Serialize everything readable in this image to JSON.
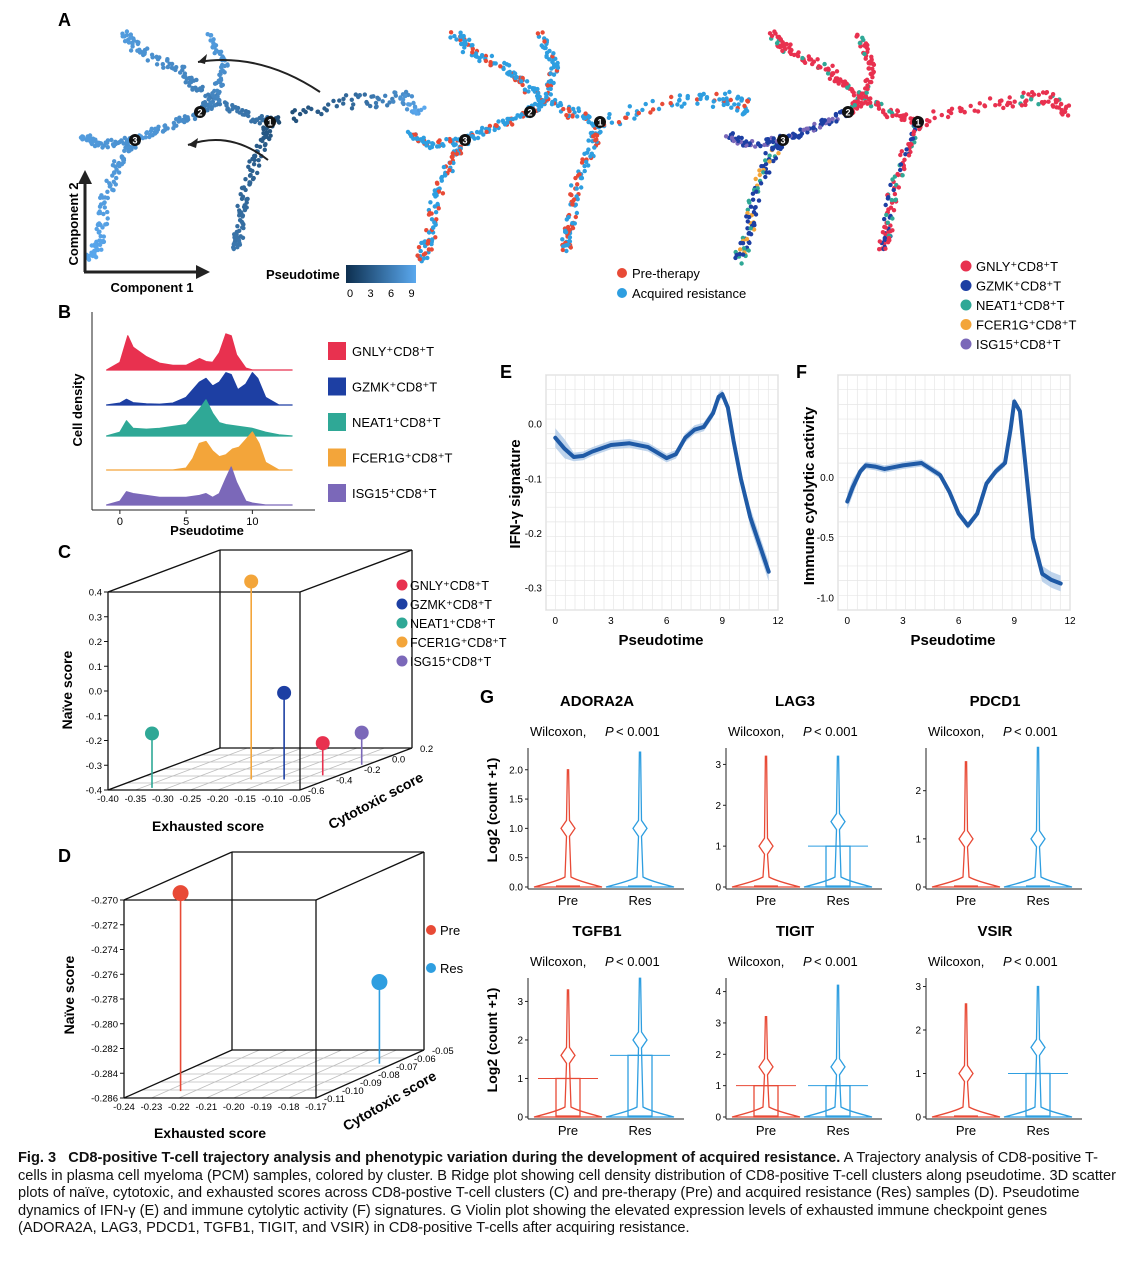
{
  "panels": {
    "A": {
      "label": "A",
      "axis_y": "Component 2",
      "axis_x": "Component 1",
      "pseudotime_legend": {
        "title": "Pseudotime",
        "ticks": [
          "0",
          "3",
          "6",
          "9"
        ]
      },
      "branch_nodes": [
        "1",
        "2",
        "3"
      ],
      "sample_legend": [
        "Pre-therapy",
        "Acquired resistance"
      ],
      "cluster_legend": [
        "GNLY⁺CD8⁺T",
        "GZMK⁺CD8⁺T",
        "NEAT1⁺CD8⁺T",
        "FCER1G⁺CD8⁺T",
        "ISG15⁺CD8⁺T"
      ]
    },
    "B": {
      "label": "B",
      "ylabel": "Cell density",
      "xlabel": "Pseudotime",
      "xticks": [
        "0",
        "5",
        "10"
      ],
      "legend": [
        "GNLY⁺CD8⁺T",
        "GZMK⁺CD8⁺T",
        "NEAT1⁺CD8⁺T",
        "FCER1G⁺CD8⁺T",
        "ISG15⁺CD8⁺T"
      ]
    },
    "C": {
      "label": "C",
      "zlabel": "Naïve score",
      "xlabel": "Exhausted score",
      "ylabel": "Cytotoxic score",
      "zticks": [
        "0.4",
        "0.3",
        "0.2",
        "0.1",
        "0.0",
        "-0.1",
        "-0.2",
        "-0.3",
        "-0.4"
      ],
      "xticks": [
        "-0.40",
        "-0.35",
        "-0.30",
        "-0.25",
        "-0.20",
        "-0.15",
        "-0.10",
        "-0.05"
      ],
      "yticks": [
        "-0.6",
        "-0.4",
        "-0.2",
        "0.0",
        "0.2"
      ],
      "legend": [
        "GNLY⁺CD8⁺T",
        "GZMK⁺CD8⁺T",
        "NEAT1⁺CD8⁺T",
        "FCER1G⁺CD8⁺T",
        "ISG15⁺CD8⁺T"
      ]
    },
    "D": {
      "label": "D",
      "zlabel": "Naïve score",
      "xlabel": "Exhausted score",
      "ylabel": "Cytotoxic score",
      "zticks": [
        "-0.270",
        "-0.272",
        "-0.274",
        "-0.276",
        "-0.278",
        "-0.280",
        "-0.282",
        "-0.284",
        "-0.286"
      ],
      "xticks": [
        "-0.24",
        "-0.23",
        "-0.22",
        "-0.21",
        "-0.20",
        "-0.19",
        "-0.18",
        "-0.17"
      ],
      "yticks": [
        "-0.11",
        "-0.10",
        "-0.09",
        "-0.08",
        "-0.07",
        "-0.06",
        "-0.05"
      ],
      "legend": [
        "Pre",
        "Res"
      ]
    },
    "E": {
      "label": "E",
      "ylabel": "IFN-γ signature",
      "xlabel": "Pseudotime",
      "xticks": [
        "0",
        "3",
        "6",
        "9",
        "12"
      ],
      "yticks": [
        "0.0",
        "-0.1",
        "-0.2",
        "-0.3"
      ]
    },
    "F": {
      "label": "F",
      "ylabel": "Immune cytolytic activity",
      "xlabel": "Pseudotime",
      "xticks": [
        "0",
        "3",
        "6",
        "9",
        "12"
      ],
      "yticks": [
        "0.0",
        "-0.5",
        "-1.0"
      ]
    },
    "G": {
      "label": "G",
      "ylabel": "Log2 (count +1)",
      "groups": [
        "Pre",
        "Res"
      ],
      "test": "Wilcoxon,",
      "p": "P",
      "pval": "< 0.001"
    }
  },
  "chart_data": [
    {
      "panel": "B",
      "type": "area",
      "xlim": [
        -1.5,
        14.5
      ],
      "series": [
        {
          "name": "GNLY⁺CD8⁺T",
          "color": "#e8314f",
          "x": [
            -1,
            0,
            0.6,
            1,
            2,
            3,
            4,
            5,
            6,
            6.5,
            7,
            7.5,
            8,
            8.4,
            8.8,
            9.5,
            10,
            11,
            12,
            13
          ],
          "values": [
            0,
            0.2,
            0.9,
            0.6,
            0.35,
            0.18,
            0.12,
            0.12,
            0.3,
            0.22,
            0.2,
            0.45,
            0.95,
            0.9,
            0.4,
            0.05,
            0,
            0,
            0,
            0
          ]
        },
        {
          "name": "GZMK⁺CD8⁺T",
          "color": "#1d3fa3",
          "x": [
            -1,
            0,
            0.5,
            1,
            2,
            3,
            4,
            5,
            6,
            6.5,
            7,
            7.5,
            8,
            8.4,
            8.9,
            9.5,
            10,
            10.4,
            11,
            12,
            13
          ],
          "values": [
            0,
            0.05,
            0.15,
            0.06,
            0.03,
            0.02,
            0.05,
            0.2,
            0.6,
            0.7,
            0.5,
            0.6,
            0.85,
            0.8,
            0.4,
            0.55,
            0.85,
            0.7,
            0.2,
            0,
            0
          ]
        },
        {
          "name": "NEAT1⁺CD8⁺T",
          "color": "#2fa896",
          "x": [
            -1,
            0,
            0.5,
            1,
            2,
            3,
            4,
            5,
            6,
            6.5,
            7,
            7.5,
            8,
            9,
            10,
            11,
            12,
            13
          ],
          "values": [
            0,
            0.1,
            0.4,
            0.2,
            0.18,
            0.2,
            0.25,
            0.3,
            0.7,
            0.95,
            0.6,
            0.35,
            0.3,
            0.25,
            0.2,
            0.1,
            0.03,
            0
          ]
        },
        {
          "name": "FCER1G⁺CD8⁺T",
          "color": "#f3a53a",
          "x": [
            -1,
            2,
            4,
            5,
            5.5,
            6,
            6.5,
            7,
            7.5,
            8,
            8.5,
            9,
            9.5,
            10,
            10.5,
            11,
            12,
            13
          ],
          "values": [
            0,
            0,
            0,
            0.05,
            0.3,
            0.7,
            0.75,
            0.5,
            0.35,
            0.4,
            0.55,
            0.6,
            0.8,
            1.0,
            0.7,
            0.2,
            0,
            0
          ]
        },
        {
          "name": "ISG15⁺CD8⁺T",
          "color": "#7b68b9",
          "x": [
            -1,
            0,
            0.5,
            1,
            2,
            3,
            4,
            5,
            6,
            6.5,
            7,
            7.5,
            8,
            8.4,
            8.8,
            9.5,
            10,
            11,
            12,
            13
          ],
          "values": [
            0,
            0.1,
            0.35,
            0.3,
            0.25,
            0.2,
            0.2,
            0.2,
            0.25,
            0.3,
            0.2,
            0.3,
            0.7,
            1.0,
            0.6,
            0.1,
            0.05,
            0,
            0,
            0
          ]
        }
      ]
    },
    {
      "panel": "C",
      "type": "scatter",
      "series": [
        {
          "name": "GNLY⁺CD8⁺T",
          "color": "#e8314f",
          "exhausted": -0.08,
          "cytotoxic": -0.45,
          "naive": -0.27
        },
        {
          "name": "GZMK⁺CD8⁺T",
          "color": "#1d3fa3",
          "exhausted": -0.13,
          "cytotoxic": -0.55,
          "naive": -0.05
        },
        {
          "name": "NEAT1⁺CD8⁺T",
          "color": "#2fa896",
          "exhausted": -0.33,
          "cytotoxic": -0.75,
          "naive": -0.18
        },
        {
          "name": "FCER1G⁺CD8⁺T",
          "color": "#f3a53a",
          "exhausted": -0.19,
          "cytotoxic": -0.55,
          "naive": 0.4
        },
        {
          "name": "ISG15⁺CD8⁺T",
          "color": "#7b68b9",
          "exhausted": -0.06,
          "cytotoxic": -0.2,
          "naive": -0.27
        }
      ]
    },
    {
      "panel": "D",
      "type": "scatter",
      "series": [
        {
          "name": "Pre",
          "color": "#e84a36",
          "exhausted": -0.225,
          "cytotoxic": -0.11,
          "naive": -0.27
        },
        {
          "name": "Res",
          "color": "#2e9ee0",
          "exhausted": -0.175,
          "cytotoxic": -0.07,
          "naive": -0.2794
        }
      ]
    },
    {
      "panel": "E",
      "type": "line",
      "xlim": [
        -0.5,
        12
      ],
      "ylim": [
        -0.34,
        0.09
      ],
      "x": [
        0,
        0.5,
        1,
        1.5,
        2,
        3,
        4,
        5,
        5.5,
        6,
        6.5,
        7,
        7.5,
        8,
        8.5,
        8.8,
        9,
        9.3,
        9.6,
        10,
        10.5,
        11,
        11.5
      ],
      "values": [
        -0.025,
        -0.045,
        -0.06,
        -0.058,
        -0.05,
        -0.038,
        -0.035,
        -0.042,
        -0.052,
        -0.062,
        -0.055,
        -0.025,
        -0.01,
        -0.005,
        0.02,
        0.05,
        0.055,
        0.03,
        -0.03,
        -0.1,
        -0.17,
        -0.22,
        -0.27
      ]
    },
    {
      "panel": "F",
      "type": "line",
      "xlim": [
        -0.5,
        12
      ],
      "ylim": [
        -1.1,
        0.85
      ],
      "x": [
        0,
        0.3,
        0.7,
        1,
        1.5,
        2,
        3,
        4,
        5,
        5.5,
        6,
        6.5,
        7,
        7.5,
        8,
        8.5,
        8.8,
        9,
        9.3,
        9.6,
        10,
        10.5,
        11,
        11.5
      ],
      "values": [
        -0.2,
        -0.08,
        0.05,
        0.1,
        0.09,
        0.07,
        0.1,
        0.12,
        0.02,
        -0.12,
        -0.3,
        -0.4,
        -0.3,
        -0.05,
        0.05,
        0.12,
        0.4,
        0.63,
        0.55,
        0.1,
        -0.5,
        -0.8,
        -0.85,
        -0.88
      ]
    },
    {
      "panel": "G",
      "type": "violin",
      "genes": [
        {
          "name": "ADORA2A",
          "yticks": [
            "0.0",
            "0.5",
            "1.0",
            "1.5",
            "2.0"
          ],
          "ymax": 2.3,
          "max": [
            2.0,
            2.3
          ],
          "median": [
            0,
            0
          ],
          "q3": [
            0,
            0
          ],
          "bumps": [
            1.0,
            1.0
          ]
        },
        {
          "name": "LAG3",
          "yticks": [
            "0",
            "1",
            "2",
            "3"
          ],
          "ymax": 3.3,
          "max": [
            3.2,
            3.2
          ],
          "median": [
            0,
            0
          ],
          "q3": [
            0,
            1.0
          ],
          "bumps": [
            1.0,
            1.6
          ]
        },
        {
          "name": "PDCD1",
          "yticks": [
            "0",
            "1",
            "2"
          ],
          "ymax": 2.8,
          "max": [
            2.6,
            2.9
          ],
          "median": [
            0,
            0
          ],
          "q3": [
            0,
            0
          ],
          "bumps": [
            1.0,
            1.0
          ]
        },
        {
          "name": "TGFB1",
          "yticks": [
            "0",
            "1",
            "2",
            "3"
          ],
          "ymax": 3.5,
          "max": [
            3.3,
            3.6
          ],
          "median": [
            0,
            0
          ],
          "q3": [
            1.0,
            1.6
          ],
          "bumps": [
            1.6,
            2.0
          ]
        },
        {
          "name": "TIGIT",
          "yticks": [
            "0",
            "1",
            "2",
            "3",
            "4"
          ],
          "ymax": 4.3,
          "max": [
            3.2,
            4.2
          ],
          "median": [
            0,
            0
          ],
          "q3": [
            1.0,
            1.0
          ],
          "bumps": [
            1.6,
            1.6
          ]
        },
        {
          "name": "VSIR",
          "yticks": [
            "0",
            "1",
            "2",
            "3"
          ],
          "ymax": 3.1,
          "max": [
            2.6,
            3.0
          ],
          "median": [
            0,
            0
          ],
          "q3": [
            0,
            1.0
          ],
          "bumps": [
            1.0,
            1.6
          ]
        }
      ]
    }
  ],
  "caption": {
    "fig_num": "Fig. 3",
    "title": "CD8-positive T-cell trajectory analysis and phenotypic variation during the development of acquired resistance.",
    "body": "A Trajectory analysis of CD8-positive T-cells in plasma cell myeloma (PCM) samples, colored by cluster. B Ridge plot showing cell density distribution of CD8-positive T-cell clusters along pseudotime. 3D scatter plots of naïve, cytotoxic, and exhausted scores across CD8-postive T-cell clusters (C) and pre-therapy (Pre) and acquired resistance (Res) samples (D). Pseudotime dynamics of IFN-γ (E) and immune cytolytic activity (F) signatures. G Violin plot showing the elevated expression levels of exhausted immune checkpoint genes (ADORA2A, LAG3, PDCD1, TGFB1, TIGIT, and VSIR) in CD8-positive T-cells after acquiring resistance."
  },
  "colors": {
    "gnly": "#e8314f",
    "gzmk": "#1d3fa3",
    "neat1": "#2fa896",
    "fcer1g": "#f3a53a",
    "isg15": "#7b68b9",
    "pre": "#e84a36",
    "res": "#2e9ee0",
    "line": "#1f5aa6",
    "band": "#a9c6e6"
  }
}
